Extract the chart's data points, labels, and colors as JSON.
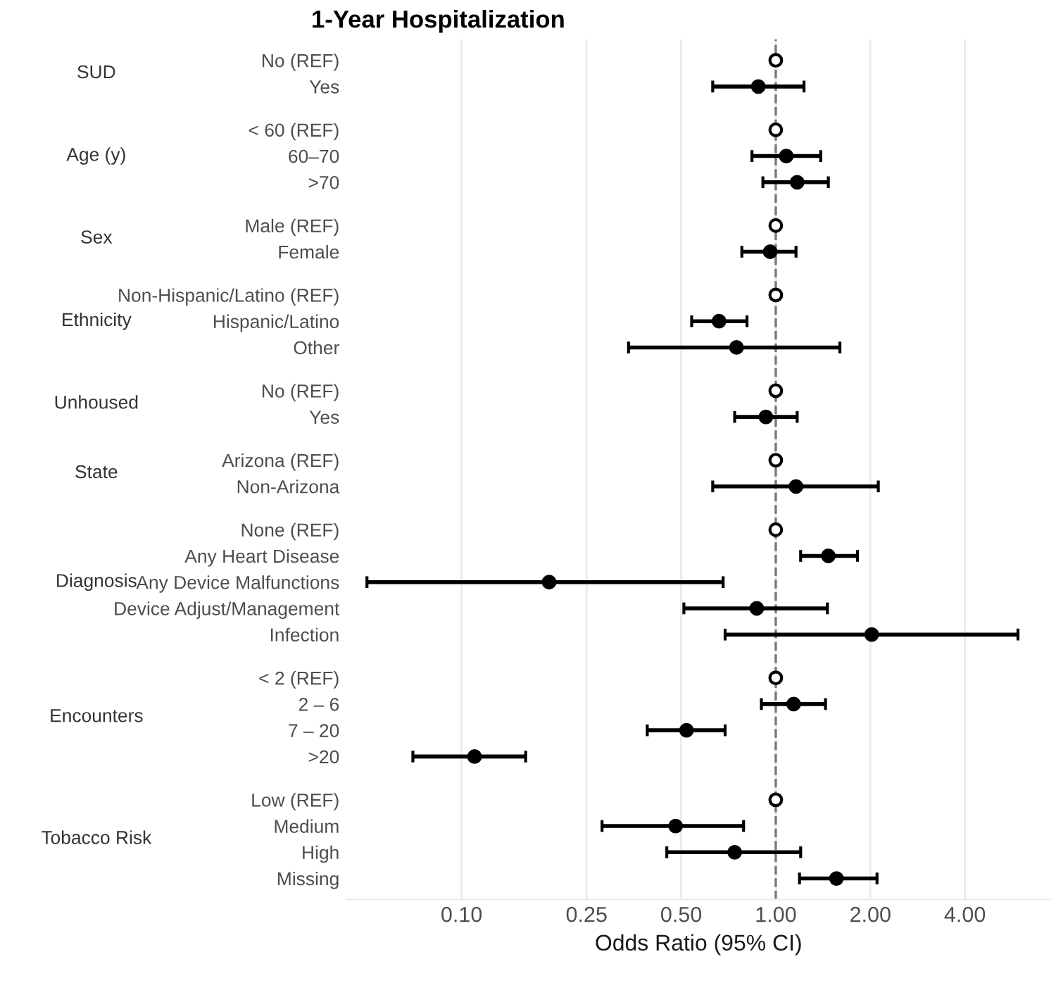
{
  "chart_data": {
    "type": "scatter",
    "orientation": "horizontal",
    "title": "1-Year Hospitalization",
    "xlabel": "Odds Ratio (95% CI)",
    "categories": [
      "No (REF)",
      "Yes",
      "< 60 (REF)",
      "60–70",
      ">70",
      "Male (REF)",
      "Female",
      "Non-Hispanic/Latino (REF)",
      "Hispanic/Latino",
      "Other",
      "No (REF)",
      "Yes",
      "Arizona (REF)",
      "Non-Arizona",
      "None (REF)",
      "Any Heart Disease",
      "Any Device Malfunctions",
      "Device Adjust/Management",
      "Infection",
      "< 2 (REF)",
      "2 – 6",
      "7 – 20",
      ">20",
      "Low (REF)",
      "Medium",
      "High",
      "Missing"
    ],
    "values": [
      1,
      0.88,
      1,
      1.08,
      1.17,
      1,
      0.96,
      1,
      0.66,
      0.75,
      1,
      0.93,
      1,
      1.16,
      1,
      1.47,
      0.19,
      0.87,
      2.02,
      1,
      1.14,
      0.52,
      0.11,
      1,
      0.48,
      0.74,
      1.56
    ],
    "errors": [
      null,
      [
        0.63,
        1.23
      ],
      null,
      [
        0.84,
        1.39
      ],
      [
        0.91,
        1.47
      ],
      null,
      [
        0.78,
        1.16
      ],
      null,
      [
        0.54,
        0.81
      ],
      [
        0.34,
        1.6
      ],
      null,
      [
        0.74,
        1.17
      ],
      null,
      [
        0.63,
        2.12
      ],
      null,
      [
        1.2,
        1.82
      ],
      [
        0.05,
        0.68
      ],
      [
        0.51,
        1.46
      ],
      [
        0.69,
        5.9
      ],
      null,
      [
        0.9,
        1.44
      ],
      [
        0.39,
        0.69
      ],
      [
        0.07,
        0.16
      ],
      null,
      [
        0.28,
        0.79
      ],
      [
        0.45,
        1.2
      ],
      [
        1.19,
        2.1
      ]
    ],
    "colors": [
      "#ffffff",
      "#000000",
      "#ffffff",
      "#000000",
      "#000000",
      "#ffffff",
      "#000000",
      "#ffffff",
      "#000000",
      "#000000",
      "#ffffff",
      "#000000",
      "#ffffff",
      "#000000",
      "#ffffff",
      "#000000",
      "#000000",
      "#000000",
      "#000000",
      "#ffffff",
      "#000000",
      "#000000",
      "#000000",
      "#ffffff",
      "#000000",
      "#000000",
      "#000000"
    ],
    "annotations": [
      "SUD",
      "Age (y)",
      "Sex",
      "Ethnicity",
      "Unhoused",
      "State",
      "Diagnosis",
      "Encounters",
      "Tobacco Risk"
    ],
    "marker": "circle",
    "xlim": [
      0.043,
      7.5
    ],
    "xticks": [
      {
        "value": 0.1,
        "label": "0.10"
      },
      {
        "value": 0.25,
        "label": "0.25"
      },
      {
        "value": 0.5,
        "label": "0.50"
      },
      {
        "value": 1,
        "label": "1.00"
      },
      {
        "value": 2,
        "label": "2.00"
      },
      {
        "value": 4,
        "label": "4.00"
      }
    ],
    "log": "x",
    "grid": "x",
    "ref_lines": [
      {
        "axis": "x",
        "value": 1,
        "line_style": "dashed",
        "color": "#777777"
      }
    ]
  }
}
